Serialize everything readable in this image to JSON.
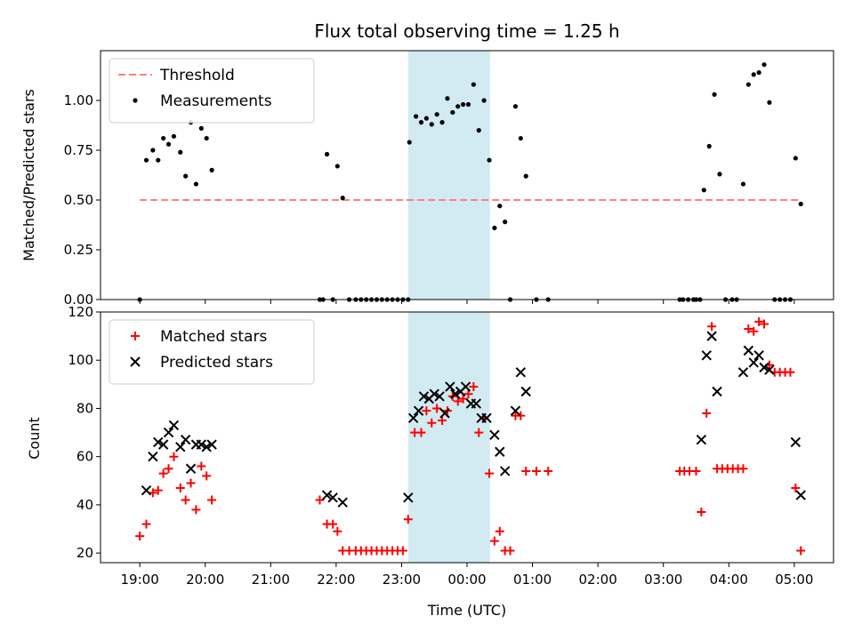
{
  "chart_data": [
    {
      "type": "scatter",
      "title": "Flux total observing time = 1.25 h",
      "xlabel": "",
      "ylabel": "Matched/Predicted stars",
      "xlim": [
        -0.6,
        10.6
      ],
      "ylim": [
        0,
        1.25
      ],
      "y_ticks": [
        0,
        0.25,
        0.5,
        0.75,
        1.0
      ],
      "y_tick_labels": [
        "0.00",
        "0.25",
        "0.50",
        "0.75",
        "1.00"
      ],
      "shaded_span": {
        "x": [
          4.1,
          5.35
        ],
        "color": "#add8e6"
      },
      "threshold": {
        "name": "Threshold",
        "y": 0.5,
        "x": [
          0.0,
          10.1
        ],
        "color": "#ff7f7f"
      },
      "legend_position": "top-left",
      "series": [
        {
          "name": "Measurements",
          "color": "#000000",
          "marker": "dot",
          "points": [
            [
              0.0,
              0.0
            ],
            [
              0.1,
              0.7
            ],
            [
              0.2,
              0.75
            ],
            [
              0.28,
              0.7
            ],
            [
              0.36,
              0.81
            ],
            [
              0.44,
              0.78
            ],
            [
              0.52,
              0.82
            ],
            [
              0.62,
              0.74
            ],
            [
              0.7,
              0.62
            ],
            [
              0.78,
              0.89
            ],
            [
              0.86,
              0.58
            ],
            [
              0.94,
              0.86
            ],
            [
              1.02,
              0.81
            ],
            [
              1.1,
              0.65
            ],
            [
              2.75,
              0.0
            ],
            [
              2.8,
              0.0
            ],
            [
              2.86,
              0.73
            ],
            [
              2.95,
              0.0
            ],
            [
              3.02,
              0.67
            ],
            [
              3.1,
              0.51
            ],
            [
              3.2,
              0.0
            ],
            [
              3.3,
              0.0
            ],
            [
              3.38,
              0.0
            ],
            [
              3.46,
              0.0
            ],
            [
              3.54,
              0.0
            ],
            [
              3.62,
              0.0
            ],
            [
              3.7,
              0.0
            ],
            [
              3.78,
              0.0
            ],
            [
              3.86,
              0.0
            ],
            [
              3.94,
              0.0
            ],
            [
              4.02,
              0.0
            ],
            [
              4.1,
              0.0
            ],
            [
              4.12,
              0.79
            ],
            [
              4.22,
              0.92
            ],
            [
              4.3,
              0.89
            ],
            [
              4.38,
              0.91
            ],
            [
              4.46,
              0.88
            ],
            [
              4.54,
              0.93
            ],
            [
              4.62,
              0.89
            ],
            [
              4.7,
              1.01
            ],
            [
              4.78,
              0.94
            ],
            [
              4.86,
              0.97
            ],
            [
              4.94,
              0.98
            ],
            [
              5.02,
              0.98
            ],
            [
              5.1,
              1.08
            ],
            [
              5.18,
              0.85
            ],
            [
              5.26,
              1.0
            ],
            [
              5.34,
              0.7
            ],
            [
              5.42,
              0.36
            ],
            [
              5.5,
              0.47
            ],
            [
              5.58,
              0.39
            ],
            [
              5.66,
              0.0
            ],
            [
              5.74,
              0.97
            ],
            [
              5.82,
              0.81
            ],
            [
              5.9,
              0.62
            ],
            [
              6.06,
              0.0
            ],
            [
              6.24,
              0.0
            ],
            [
              8.25,
              0.0
            ],
            [
              8.3,
              0.0
            ],
            [
              8.38,
              0.0
            ],
            [
              8.46,
              0.0
            ],
            [
              8.5,
              0.0
            ],
            [
              8.56,
              0.0
            ],
            [
              8.62,
              0.55
            ],
            [
              8.7,
              0.77
            ],
            [
              8.78,
              1.03
            ],
            [
              8.86,
              0.63
            ],
            [
              8.95,
              0.0
            ],
            [
              9.05,
              0.0
            ],
            [
              9.12,
              0.0
            ],
            [
              9.22,
              0.58
            ],
            [
              9.3,
              1.08
            ],
            [
              9.38,
              1.13
            ],
            [
              9.46,
              1.14
            ],
            [
              9.54,
              1.18
            ],
            [
              9.62,
              0.99
            ],
            [
              9.7,
              0.0
            ],
            [
              9.78,
              0.0
            ],
            [
              9.86,
              0.0
            ],
            [
              9.94,
              0.0
            ],
            [
              10.02,
              0.71
            ],
            [
              10.1,
              0.48
            ]
          ]
        }
      ]
    },
    {
      "type": "scatter",
      "title": "",
      "xlabel": "Time (UTC)",
      "ylabel": "Count",
      "xlim": [
        -0.6,
        10.6
      ],
      "ylim": [
        16,
        120
      ],
      "y_ticks": [
        20,
        40,
        60,
        80,
        100,
        120
      ],
      "y_tick_labels": [
        "20",
        "40",
        "60",
        "80",
        "100",
        "120"
      ],
      "x_ticks": [
        0,
        1,
        2,
        3,
        4,
        5,
        6,
        7,
        8,
        9,
        10
      ],
      "x_tick_labels": [
        "19:00",
        "20:00",
        "21:00",
        "22:00",
        "23:00",
        "00:00",
        "01:00",
        "02:00",
        "03:00",
        "04:00",
        "05:00"
      ],
      "shaded_span": {
        "x": [
          4.1,
          5.35
        ],
        "color": "#add8e6"
      },
      "legend_position": "top-left",
      "series": [
        {
          "name": "Matched stars",
          "color": "#ff0000",
          "marker": "plus",
          "points": [
            [
              0.0,
              27
            ],
            [
              0.1,
              32
            ],
            [
              0.2,
              45
            ],
            [
              0.28,
              46
            ],
            [
              0.36,
              53
            ],
            [
              0.44,
              55
            ],
            [
              0.52,
              60
            ],
            [
              0.62,
              47
            ],
            [
              0.7,
              42
            ],
            [
              0.78,
              49
            ],
            [
              0.86,
              38
            ],
            [
              0.94,
              56
            ],
            [
              1.02,
              52
            ],
            [
              1.1,
              42
            ],
            [
              2.75,
              42
            ],
            [
              2.86,
              32
            ],
            [
              2.95,
              32
            ],
            [
              3.02,
              29
            ],
            [
              3.1,
              21
            ],
            [
              3.2,
              21
            ],
            [
              3.3,
              21
            ],
            [
              3.38,
              21
            ],
            [
              3.46,
              21
            ],
            [
              3.54,
              21
            ],
            [
              3.62,
              21
            ],
            [
              3.7,
              21
            ],
            [
              3.78,
              21
            ],
            [
              3.86,
              21
            ],
            [
              3.94,
              21
            ],
            [
              4.02,
              21
            ],
            [
              4.1,
              34
            ],
            [
              4.2,
              70
            ],
            [
              4.3,
              70
            ],
            [
              4.38,
              79
            ],
            [
              4.46,
              74
            ],
            [
              4.54,
              80
            ],
            [
              4.62,
              75
            ],
            [
              4.7,
              79
            ],
            [
              4.78,
              85
            ],
            [
              4.86,
              83
            ],
            [
              4.94,
              84
            ],
            [
              5.02,
              86
            ],
            [
              5.1,
              89
            ],
            [
              5.18,
              70
            ],
            [
              5.26,
              76
            ],
            [
              5.34,
              53
            ],
            [
              5.42,
              25
            ],
            [
              5.5,
              29
            ],
            [
              5.58,
              21
            ],
            [
              5.66,
              21
            ],
            [
              5.74,
              77
            ],
            [
              5.82,
              77
            ],
            [
              5.9,
              54
            ],
            [
              6.06,
              54
            ],
            [
              6.24,
              54
            ],
            [
              8.25,
              54
            ],
            [
              8.32,
              54
            ],
            [
              8.4,
              54
            ],
            [
              8.5,
              54
            ],
            [
              8.58,
              37
            ],
            [
              8.66,
              78
            ],
            [
              8.74,
              114
            ],
            [
              8.82,
              55
            ],
            [
              8.9,
              55
            ],
            [
              8.98,
              55
            ],
            [
              9.06,
              55
            ],
            [
              9.14,
              55
            ],
            [
              9.22,
              55
            ],
            [
              9.3,
              113
            ],
            [
              9.38,
              112
            ],
            [
              9.46,
              116
            ],
            [
              9.54,
              115
            ],
            [
              9.62,
              98
            ],
            [
              9.7,
              95
            ],
            [
              9.78,
              95
            ],
            [
              9.86,
              95
            ],
            [
              9.94,
              95
            ],
            [
              10.02,
              47
            ],
            [
              10.1,
              21
            ]
          ]
        },
        {
          "name": "Predicted stars",
          "color": "#000000",
          "marker": "x",
          "points": [
            [
              0.1,
              46
            ],
            [
              0.2,
              60
            ],
            [
              0.28,
              66
            ],
            [
              0.36,
              65
            ],
            [
              0.44,
              70
            ],
            [
              0.52,
              73
            ],
            [
              0.62,
              64
            ],
            [
              0.7,
              67
            ],
            [
              0.78,
              55
            ],
            [
              0.86,
              65
            ],
            [
              0.94,
              65
            ],
            [
              1.02,
              64
            ],
            [
              1.1,
              65
            ],
            [
              2.86,
              44
            ],
            [
              2.95,
              43
            ],
            [
              3.1,
              41
            ],
            [
              4.1,
              43
            ],
            [
              4.18,
              76
            ],
            [
              4.26,
              79
            ],
            [
              4.34,
              85
            ],
            [
              4.42,
              84
            ],
            [
              4.5,
              86
            ],
            [
              4.58,
              85
            ],
            [
              4.66,
              78
            ],
            [
              4.74,
              89
            ],
            [
              4.82,
              86
            ],
            [
              4.9,
              87
            ],
            [
              4.98,
              89
            ],
            [
              5.06,
              82
            ],
            [
              5.14,
              82
            ],
            [
              5.22,
              76
            ],
            [
              5.3,
              76
            ],
            [
              5.42,
              69
            ],
            [
              5.5,
              62
            ],
            [
              5.58,
              54
            ],
            [
              5.74,
              79
            ],
            [
              5.82,
              95
            ],
            [
              5.9,
              87
            ],
            [
              8.58,
              67
            ],
            [
              8.66,
              102
            ],
            [
              8.74,
              110
            ],
            [
              8.82,
              87
            ],
            [
              9.22,
              95
            ],
            [
              9.3,
              104
            ],
            [
              9.38,
              99
            ],
            [
              9.46,
              102
            ],
            [
              9.54,
              97
            ],
            [
              9.62,
              96
            ],
            [
              10.02,
              66
            ],
            [
              10.1,
              44
            ]
          ]
        }
      ]
    }
  ]
}
